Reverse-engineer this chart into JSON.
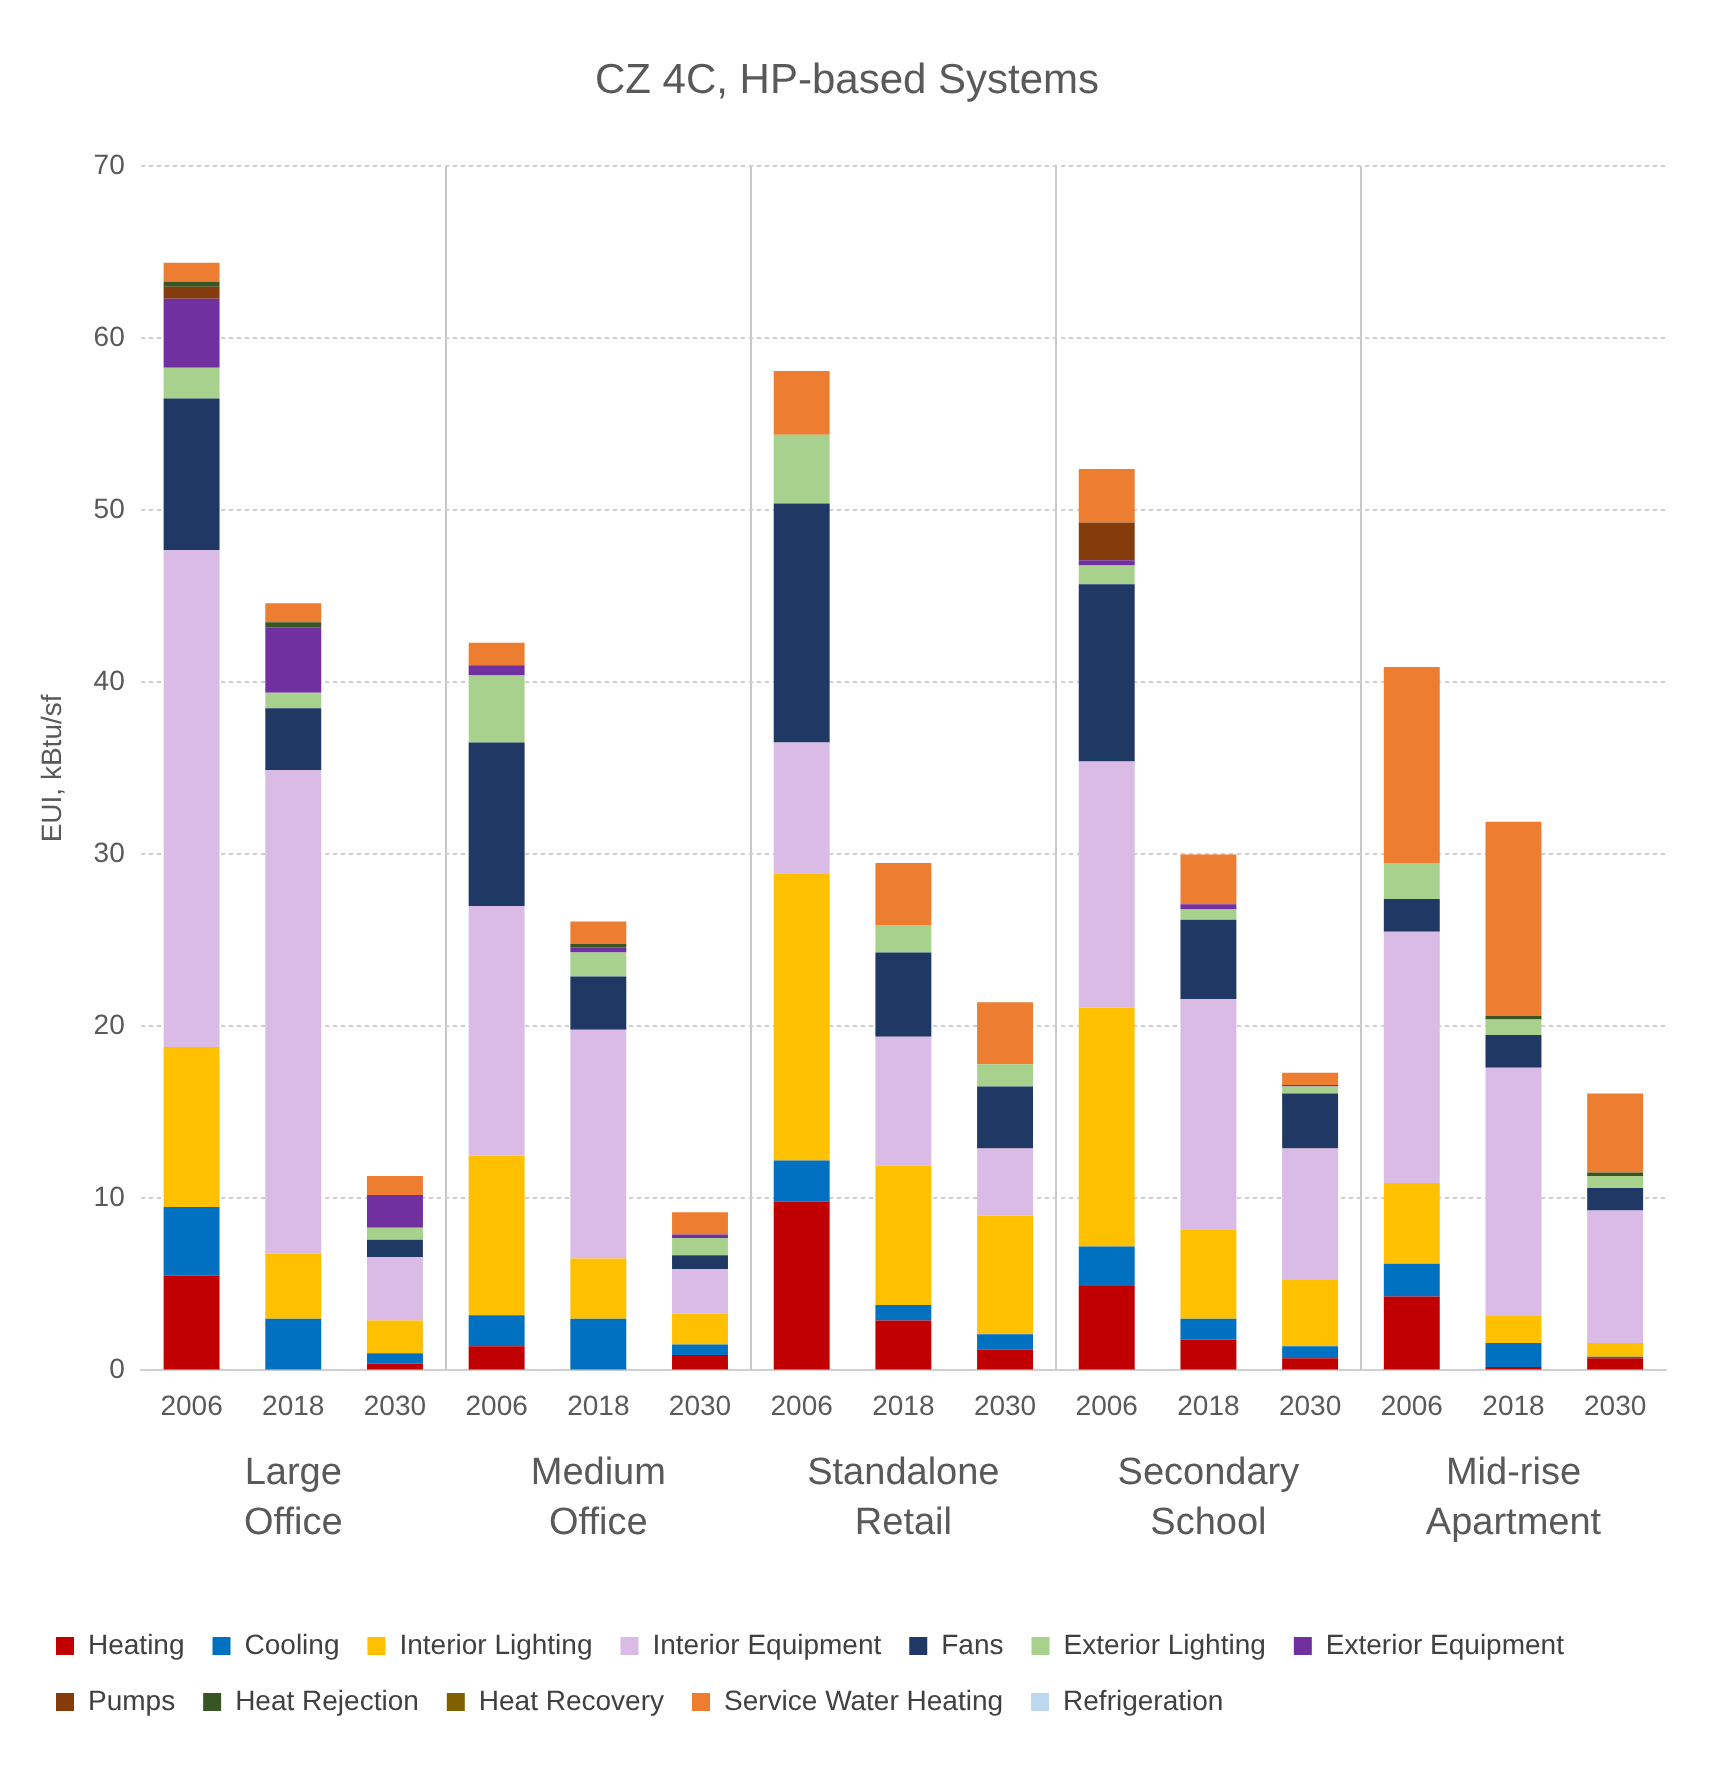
{
  "chart_data": {
    "type": "bar",
    "stacked": true,
    "title": "CZ 4C, HP-based Systems",
    "ylabel": "EUI, kBtu/sf",
    "categories": [
      "2006",
      "2018",
      "2030",
      "2006",
      "2018",
      "2030",
      "2006",
      "2018",
      "2030",
      "2006",
      "2018",
      "2030",
      "2006",
      "2018",
      "2030"
    ],
    "annotations": [
      "Large Office",
      "Medium Office",
      "Standalone Retail",
      "Secondary School",
      "Mid-rise Apartment"
    ],
    "ylim": [
      0,
      70
    ],
    "yticks": [
      0,
      10,
      20,
      30,
      40,
      50,
      60,
      70
    ],
    "grid": true,
    "legend": "bottom",
    "series": [
      {
        "name": "Heating",
        "color": "#c00000",
        "values": [
          5.5,
          0,
          0.4,
          1.4,
          0,
          0.9,
          9.8,
          2.9,
          1.2,
          4.9,
          1.8,
          0.7,
          4.3,
          0.2,
          0.7
        ]
      },
      {
        "name": "Cooling",
        "color": "#0070c0",
        "values": [
          4.0,
          3.0,
          0.6,
          1.8,
          3.0,
          0.6,
          2.4,
          0.9,
          0.9,
          2.3,
          1.2,
          0.7,
          1.9,
          1.4,
          0.1
        ]
      },
      {
        "name": "Interior Lighting",
        "color": "#ffc000",
        "values": [
          9.3,
          3.8,
          1.9,
          9.3,
          3.5,
          1.8,
          16.7,
          8.1,
          6.9,
          13.9,
          5.2,
          3.9,
          4.7,
          1.6,
          0.8
        ]
      },
      {
        "name": "Interior Equipment",
        "color": "#d9bbe6",
        "values": [
          28.9,
          28.1,
          3.7,
          14.5,
          13.3,
          2.6,
          7.6,
          7.5,
          3.9,
          14.3,
          13.4,
          7.6,
          14.6,
          14.4,
          7.7
        ]
      },
      {
        "name": "Fans",
        "color": "#1f3864",
        "values": [
          8.8,
          3.6,
          1.0,
          9.5,
          3.1,
          0.8,
          13.9,
          4.9,
          3.6,
          10.3,
          4.6,
          3.2,
          1.9,
          1.9,
          1.3
        ]
      },
      {
        "name": "Exterior Lighting",
        "color": "#a9d18e",
        "values": [
          1.8,
          0.9,
          0.7,
          3.9,
          1.4,
          1.0,
          4.0,
          1.6,
          1.3,
          1.1,
          0.6,
          0.4,
          2.1,
          0.9,
          0.7
        ]
      },
      {
        "name": "Exterior Equipment",
        "color": "#7030a0",
        "values": [
          4.0,
          3.8,
          1.9,
          0.6,
          0.3,
          0.2,
          0,
          0,
          0,
          0.3,
          0.3,
          0.1,
          0,
          0,
          0
        ]
      },
      {
        "name": "Pumps",
        "color": "#843c0c",
        "values": [
          0.7,
          0,
          0,
          0,
          0,
          0,
          0,
          0,
          0,
          2.2,
          0,
          0,
          0,
          0,
          0
        ]
      },
      {
        "name": "Heat Rejection",
        "color": "#375623",
        "values": [
          0.3,
          0.3,
          0,
          0,
          0.2,
          0,
          0,
          0,
          0,
          0,
          0,
          0,
          0,
          0.2,
          0.2
        ]
      },
      {
        "name": "Heat Recovery",
        "color": "#806000",
        "values": [
          0,
          0,
          0,
          0,
          0,
          0,
          0,
          0,
          0,
          0,
          0,
          0,
          0,
          0,
          0
        ]
      },
      {
        "name": "Service Water Heating",
        "color": "#ed7d31",
        "values": [
          1.1,
          1.1,
          1.1,
          1.3,
          1.3,
          1.3,
          3.7,
          3.6,
          3.6,
          3.1,
          2.9,
          0.7,
          11.4,
          11.3,
          4.6
        ]
      },
      {
        "name": "Refrigeration",
        "color": "#bdd7ee",
        "values": [
          0,
          0,
          0,
          0,
          0,
          0,
          0,
          0,
          0,
          0,
          0,
          0,
          0,
          0,
          0
        ]
      }
    ]
  }
}
